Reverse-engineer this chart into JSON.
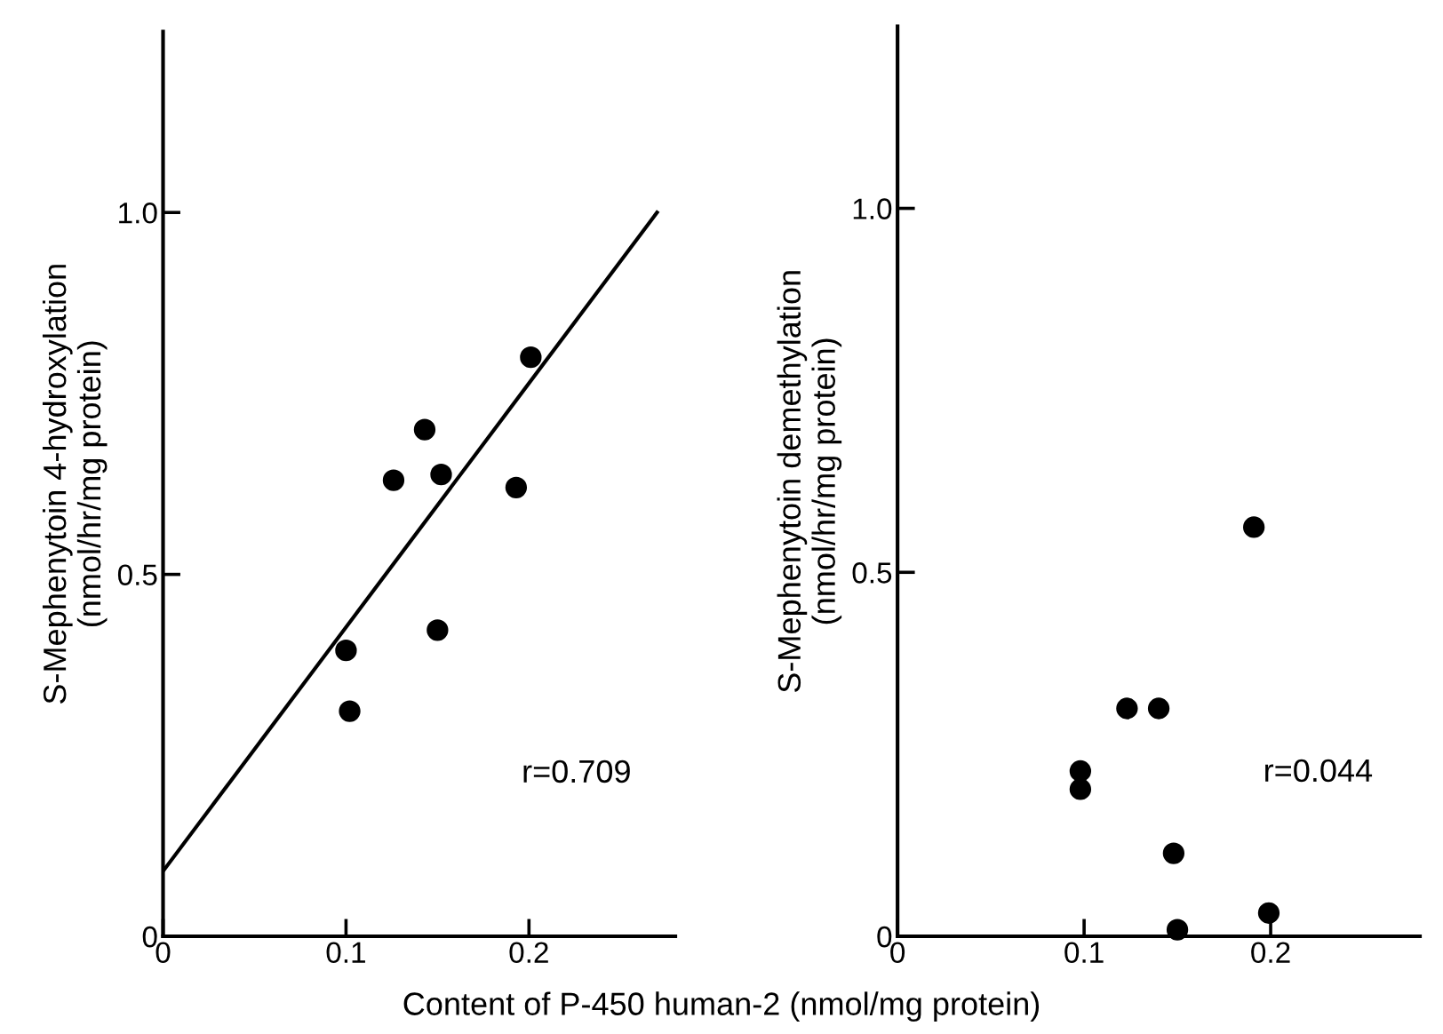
{
  "chart_data": [
    {
      "type": "scatter",
      "ylabel": "S-Mephenytoin 4-hydroxylation\n(nmol/hr/mg protein)",
      "xlabel": "Content of P-450 human-2 (nmol/mg protein)",
      "grid": false,
      "xlim": [
        0,
        0.28
      ],
      "ylim": [
        0,
        1.25
      ],
      "xticks": [
        0,
        0.1,
        0.2
      ],
      "yticks": [
        0,
        0.5,
        {
          "value": 1,
          "label": "1.0"
        }
      ],
      "series": [
        {
          "color": "#000000",
          "marker": "circle",
          "x": [
            0.1,
            0.102,
            0.126,
            0.143,
            0.152,
            0.15,
            0.193,
            0.201
          ],
          "values": [
            0.395,
            0.311,
            0.63,
            0.7,
            0.638,
            0.423,
            0.62,
            0.8
          ]
        },
        {
          "type": "line",
          "color": "#000000",
          "x": [
            0,
            0.27
          ],
          "values": [
            0.09,
            1.0
          ]
        }
      ],
      "annotations": [
        "r=0.709"
      ]
    },
    {
      "type": "scatter",
      "ylabel": "S-Mephenytoin demethylation\n(nmol/hr/mg protein)",
      "marker": "circle",
      "grid": false,
      "xlim": [
        0,
        0.28
      ],
      "ylim": [
        0,
        1.25
      ],
      "xticks": [
        0,
        0.1,
        0.2
      ],
      "yticks": [
        0,
        0.5,
        {
          "value": 1,
          "label": "1.0"
        }
      ],
      "series": [
        {
          "color": "#000000",
          "x": [
            0.191,
            0.123,
            0.14,
            0.098,
            0.098,
            0.148,
            0.15,
            0.199
          ],
          "values": [
            0.562,
            0.313,
            0.313,
            0.227,
            0.202,
            0.114,
            0.009,
            0.032
          ]
        }
      ],
      "annotations": [
        "r=0.044"
      ]
    }
  ]
}
